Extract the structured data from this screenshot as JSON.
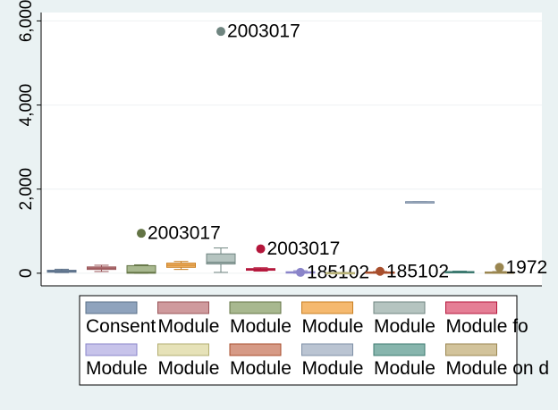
{
  "chart_data": {
    "type": "box",
    "ylim": [
      -300,
      6200
    ],
    "yticks": [
      0,
      2000,
      4000,
      6000
    ],
    "ytick_labels": [
      "0",
      "2,000",
      "4,000",
      "6,000"
    ],
    "series": [
      {
        "name": "Consent",
        "color": "#8fa3bd",
        "stroke": "#5b7089",
        "q1": 25,
        "median": 45,
        "q3": 70,
        "low": 15,
        "high": 95,
        "outlier": null,
        "outlier_label": ""
      },
      {
        "name": "Module",
        "color": "#cf9a9d",
        "stroke": "#9a5458",
        "q1": 90,
        "median": 120,
        "q3": 150,
        "low": 40,
        "high": 190,
        "outlier": null,
        "outlier_label": ""
      },
      {
        "name": "Module",
        "color": "#a8b88f",
        "stroke": "#637445",
        "q1": 0,
        "median": 20,
        "q3": 180,
        "low": 0,
        "high": 200,
        "outlier": 950,
        "outlier_label": "2003017"
      },
      {
        "name": "Module",
        "color": "#f5b96f",
        "stroke": "#c97f22",
        "q1": 140,
        "median": 190,
        "q3": 240,
        "low": 90,
        "high": 280,
        "outlier": null,
        "outlier_label": ""
      },
      {
        "name": "Module",
        "color": "#b5c4c0",
        "stroke": "#6f8580",
        "q1": 220,
        "median": 260,
        "q3": 460,
        "low": 20,
        "high": 600,
        "outlier": 5750,
        "outlier_label": "2003017"
      },
      {
        "name": "Module",
        "color": "#e57e95",
        "stroke": "#b4163b",
        "q1": 70,
        "median": 90,
        "q3": 110,
        "low": 50,
        "high": 130,
        "outlier": 580,
        "outlier_label": "2003017"
      },
      {
        "name": "Module",
        "color": "#c7c3ea",
        "stroke": "#8a84c9",
        "q1": 10,
        "median": 20,
        "q3": 35,
        "low": 0,
        "high": 60,
        "outlier": 20,
        "outlier_label": "185102"
      },
      {
        "name": "Module",
        "color": "#e6e2b8",
        "stroke": "#b3ad70",
        "q1": 5,
        "median": 10,
        "q3": 15,
        "low": 0,
        "high": 20,
        "outlier": null,
        "outlier_label": ""
      },
      {
        "name": "Module",
        "color": "#d69a86",
        "stroke": "#a84e2c",
        "q1": 10,
        "median": 20,
        "q3": 30,
        "low": 0,
        "high": 40,
        "outlier": 45,
        "outlier_label": "185102"
      },
      {
        "name": "Module",
        "color": "#bac4d2",
        "stroke": "#7d8fa6",
        "q1": 1700,
        "median": 1700,
        "q3": 1700,
        "low": 1700,
        "high": 1700,
        "outlier": null,
        "outlier_label": ""
      },
      {
        "name": "Module",
        "color": "#87b5ad",
        "stroke": "#3d7a70",
        "q1": 20,
        "median": 30,
        "q3": 40,
        "low": 10,
        "high": 50,
        "outlier": null,
        "outlier_label": ""
      },
      {
        "name": "Module",
        "color": "#d2c39b",
        "stroke": "#9a8650",
        "q1": 10,
        "median": 20,
        "q3": 30,
        "low": 0,
        "high": 40,
        "outlier": 140,
        "outlier_label": "1972"
      }
    ],
    "legend": {
      "placement": "bottom",
      "labels": [
        "Consent",
        "Module",
        "Module",
        "Module",
        "Module",
        "Module fo",
        "Module",
        "Module",
        "Module",
        "Module",
        "Module",
        "Module on d"
      ]
    }
  }
}
